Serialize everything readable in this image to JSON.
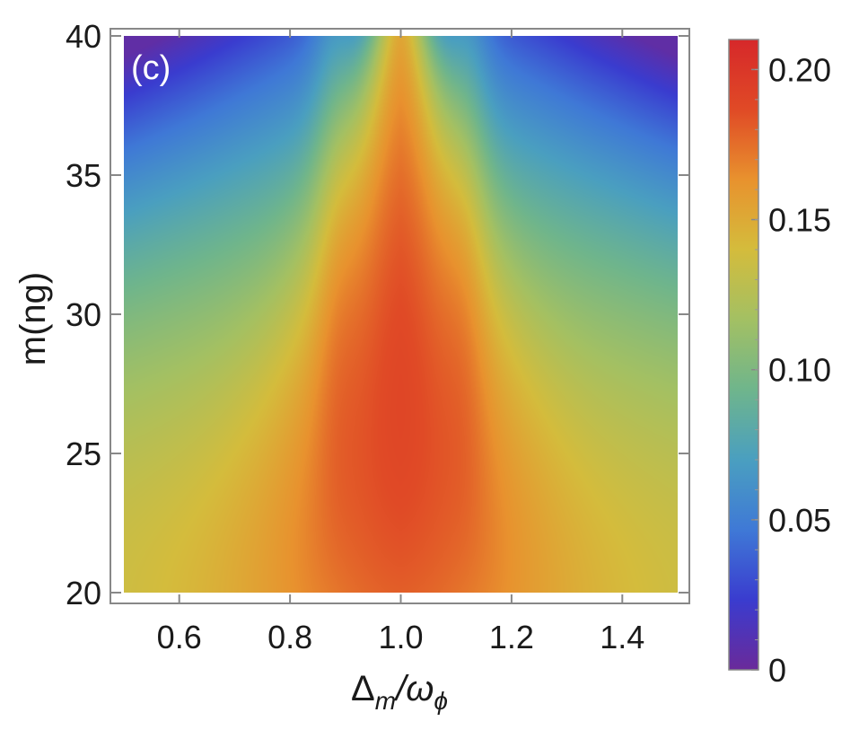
{
  "chart_data": {
    "type": "heatmap",
    "panel_label": "(c)",
    "xlabel": {
      "main": "Δ",
      "sub1": "m",
      "sep": "/ω",
      "sub2": "ϕ"
    },
    "ylabel": "m(ng)",
    "xlim": [
      0.5,
      1.5
    ],
    "ylim": [
      20,
      40
    ],
    "x_ticks": [
      0.6,
      0.8,
      1.0,
      1.2,
      1.4
    ],
    "x_tick_labels": [
      "0.6",
      "0.8",
      "1.0",
      "1.2",
      "1.4"
    ],
    "y_ticks": [
      20,
      25,
      30,
      35,
      40
    ],
    "y_tick_labels": [
      "20",
      "25",
      "30",
      "35",
      "40"
    ],
    "colorbar": {
      "min": 0,
      "max": 0.21,
      "ticks": [
        0,
        0.05,
        0.1,
        0.15,
        0.2
      ],
      "tick_labels": [
        "0",
        "0.05",
        "0.10",
        "0.15",
        "0.20"
      ],
      "colormap": [
        "#6a2a9a",
        "#3a3ccf",
        "#3f79d6",
        "#4a9fc0",
        "#6fb58c",
        "#a3c063",
        "#d4bc3c",
        "#e8922e",
        "#e04a26",
        "#d6282a"
      ]
    },
    "grid": false
  }
}
